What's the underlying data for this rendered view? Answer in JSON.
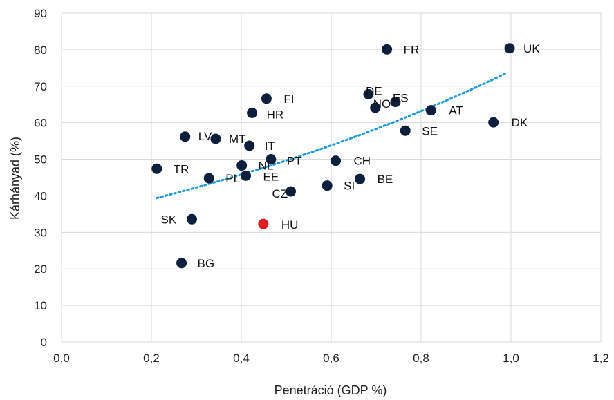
{
  "chart_data": {
    "type": "scatter",
    "xlabel": "Penetráció (GDP %)",
    "ylabel": "Kárhányad (%)",
    "xlim": [
      0,
      1.2
    ],
    "ylim": [
      0,
      90
    ],
    "x_ticks": [
      "0,0",
      "0,2",
      "0,4",
      "0,6",
      "0,8",
      "1,0",
      "1,2"
    ],
    "y_ticks": [
      "0",
      "10",
      "20",
      "30",
      "40",
      "50",
      "60",
      "70",
      "80",
      "90"
    ],
    "grid": "vertical and horizontal",
    "colors": {
      "point": "#0d1f3c",
      "highlight": "#e02020",
      "trend": "#1a9bd7",
      "grid": "#d9d9d9"
    },
    "points": [
      {
        "label": "UK",
        "x": 0.997,
        "y": 80.4
      },
      {
        "label": "FR",
        "x": 0.724,
        "y": 80.1
      },
      {
        "label": "DE",
        "x": 0.683,
        "y": 67.8
      },
      {
        "label": "ES",
        "x": 0.743,
        "y": 65.7
      },
      {
        "label": "NO",
        "x": 0.698,
        "y": 64.1
      },
      {
        "label": "AT",
        "x": 0.822,
        "y": 63.4
      },
      {
        "label": "FI",
        "x": 0.456,
        "y": 66.6
      },
      {
        "label": "HR",
        "x": 0.424,
        "y": 62.7
      },
      {
        "label": "DK",
        "x": 0.961,
        "y": 60.1
      },
      {
        "label": "SE",
        "x": 0.765,
        "y": 57.8
      },
      {
        "label": "LV",
        "x": 0.275,
        "y": 56.2
      },
      {
        "label": "MT",
        "x": 0.343,
        "y": 55.6
      },
      {
        "label": "IT",
        "x": 0.418,
        "y": 53.7
      },
      {
        "label": "PT",
        "x": 0.466,
        "y": 50.0
      },
      {
        "label": "CH",
        "x": 0.61,
        "y": 49.6
      },
      {
        "label": "NL",
        "x": 0.401,
        "y": 48.3
      },
      {
        "label": "TR",
        "x": 0.212,
        "y": 47.4
      },
      {
        "label": "PL",
        "x": 0.328,
        "y": 44.8
      },
      {
        "label": "EE",
        "x": 0.41,
        "y": 45.5
      },
      {
        "label": "BE",
        "x": 0.664,
        "y": 44.6
      },
      {
        "label": "SI",
        "x": 0.591,
        "y": 42.8
      },
      {
        "label": "CZ",
        "x": 0.51,
        "y": 41.2
      },
      {
        "label": "SK",
        "x": 0.29,
        "y": 33.6
      },
      {
        "label": "HU",
        "x": 0.449,
        "y": 32.3,
        "highlight": true
      },
      {
        "label": "BG",
        "x": 0.267,
        "y": 21.6
      }
    ],
    "trendline": {
      "type": "exponential",
      "x": [
        0.212,
        0.99
      ],
      "y": [
        39.4,
        73.6
      ]
    }
  }
}
